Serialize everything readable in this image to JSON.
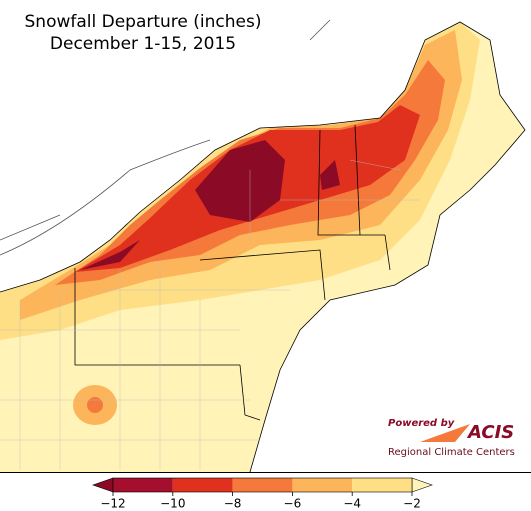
{
  "title": "Snowfall Departure (inches)",
  "subtitle": "December 1-15, 2015",
  "colorbar": {
    "ticks": [
      {
        "value": -12,
        "label": "−12"
      },
      {
        "value": -10,
        "label": "−10"
      },
      {
        "value": -8,
        "label": "−8"
      },
      {
        "value": -6,
        "label": "−6"
      },
      {
        "value": -4,
        "label": "−4"
      },
      {
        "value": -2,
        "label": "−2"
      }
    ],
    "bin_colors": [
      "#a50f2d",
      "#e0301e",
      "#f4793b",
      "#fcb55a",
      "#fedf86"
    ],
    "under_color": "#8b0a26",
    "over_color": "#fff3b8"
  },
  "logo": {
    "powered_by": "Powered by",
    "name": "ACIS",
    "tagline": "Regional Climate Centers"
  }
}
